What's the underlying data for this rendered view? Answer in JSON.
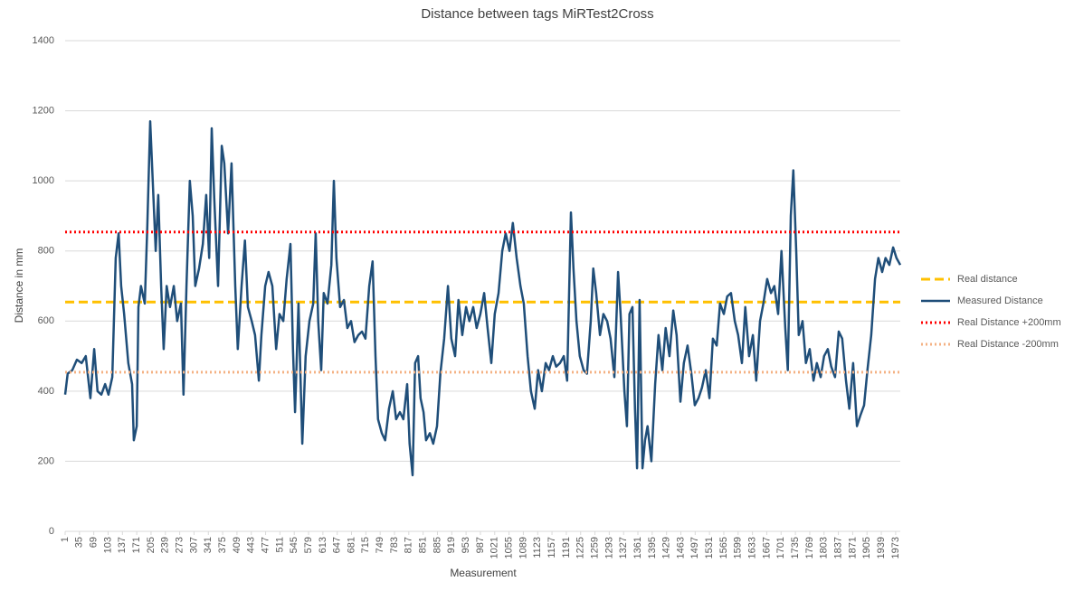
{
  "chart_data": {
    "type": "line",
    "title": "Distance between tags MiRTest2Cross",
    "x_label": "Measurement",
    "y_label": "Distance in mm",
    "xlim": [
      1,
      1984
    ],
    "xticks": [
      1,
      35,
      69,
      103,
      137,
      171,
      205,
      239,
      273,
      307,
      341,
      375,
      409,
      443,
      477,
      511,
      545,
      579,
      613,
      647,
      681,
      715,
      749,
      783,
      817,
      851,
      885,
      919,
      953,
      987,
      1021,
      1055,
      1089,
      1123,
      1157,
      1191,
      1225,
      1259,
      1293,
      1327,
      1361,
      1395,
      1429,
      1463,
      1497,
      1531,
      1565,
      1599,
      1633,
      1667,
      1701,
      1735,
      1769,
      1803,
      1837,
      1871,
      1905,
      1939,
      1973
    ],
    "ylim": [
      0,
      1400
    ],
    "yticks": [
      0,
      200,
      400,
      600,
      800,
      1000,
      1200,
      1400
    ],
    "grid": true,
    "legend": "right",
    "series": [
      {
        "name": "Real distance",
        "color": "#ffc000",
        "dash": "dashed",
        "x": [
          1,
          1984
        ],
        "values": [
          654,
          654
        ]
      },
      {
        "name": "Measured Distance",
        "color": "#1f4e79",
        "dash": "solid",
        "x": [
          1,
          7,
          18,
          29,
          40,
          50,
          61,
          70,
          78,
          87,
          96,
          104,
          113,
          121,
          128,
          134,
          141,
          151,
          160,
          164,
          171,
          175,
          181,
          190,
          196,
          203,
          209,
          216,
          222,
          229,
          235,
          242,
          250,
          259,
          267,
          276,
          282,
          289,
          297,
          304,
          310,
          319,
          328,
          336,
          343,
          349,
          355,
          364,
          373,
          379,
          388,
          396,
          405,
          411,
          420,
          428,
          435,
          444,
          452,
          461,
          467,
          476,
          484,
          493,
          502,
          510,
          519,
          527,
          536,
          542,
          547,
          555,
          564,
          572,
          581,
          590,
          596,
          602,
          609,
          615,
          624,
          633,
          639,
          645,
          654,
          663,
          671,
          680,
          688,
          697,
          706,
          714,
          723,
          731,
          738,
          744,
          753,
          761,
          770,
          779,
          787,
          796,
          804,
          813,
          819,
          826,
          832,
          839,
          845,
          852,
          858,
          867,
          875,
          884,
          892,
          901,
          910,
          918,
          927,
          935,
          944,
          953,
          961,
          970,
          978,
          987,
          996,
          1004,
          1013,
          1021,
          1030,
          1039,
          1047,
          1056,
          1064,
          1073,
          1082,
          1090,
          1099,
          1107,
          1116,
          1124,
          1133,
          1142,
          1150,
          1159,
          1167,
          1176,
          1185,
          1193,
          1202,
          1208,
          1215,
          1223,
          1232,
          1240,
          1249,
          1255,
          1262,
          1271,
          1279,
          1288,
          1296,
          1305,
          1314,
          1320,
          1329,
          1335,
          1341,
          1348,
          1354,
          1359,
          1365,
          1372,
          1378,
          1384,
          1393,
          1402,
          1410,
          1419,
          1427,
          1436,
          1445,
          1453,
          1462,
          1470,
          1479,
          1488,
          1496,
          1505,
          1513,
          1522,
          1531,
          1539,
          1548,
          1556,
          1565,
          1573,
          1582,
          1591,
          1599,
          1608,
          1616,
          1625,
          1634,
          1642,
          1651,
          1659,
          1668,
          1677,
          1685,
          1694,
          1702,
          1711,
          1717,
          1724,
          1730,
          1737,
          1743,
          1752,
          1760,
          1769,
          1778,
          1786,
          1795,
          1803,
          1812,
          1820,
          1829,
          1838,
          1846,
          1855,
          1863,
          1872,
          1881,
          1889,
          1898,
          1906,
          1915,
          1924,
          1932,
          1941,
          1949,
          1958,
          1967,
          1975,
          1984
        ],
        "values": [
          390,
          450,
          460,
          490,
          480,
          500,
          380,
          520,
          400,
          390,
          420,
          390,
          440,
          780,
          850,
          700,
          620,
          480,
          420,
          260,
          300,
          640,
          700,
          650,
          870,
          1170,
          1000,
          800,
          960,
          700,
          520,
          700,
          640,
          700,
          600,
          650,
          390,
          700,
          1000,
          900,
          700,
          750,
          820,
          960,
          780,
          1150,
          950,
          700,
          1100,
          1050,
          850,
          1050,
          700,
          520,
          700,
          830,
          640,
          600,
          560,
          430,
          560,
          700,
          740,
          700,
          520,
          620,
          600,
          720,
          820,
          520,
          340,
          650,
          250,
          500,
          600,
          650,
          850,
          600,
          460,
          680,
          650,
          760,
          1000,
          780,
          640,
          660,
          580,
          600,
          540,
          560,
          570,
          550,
          700,
          770,
          500,
          320,
          280,
          260,
          350,
          400,
          320,
          340,
          320,
          420,
          250,
          160,
          480,
          500,
          380,
          340,
          260,
          280,
          250,
          300,
          450,
          550,
          700,
          550,
          500,
          660,
          560,
          640,
          600,
          640,
          580,
          620,
          680,
          580,
          480,
          620,
          680,
          800,
          850,
          800,
          880,
          780,
          700,
          650,
          500,
          400,
          350,
          460,
          400,
          480,
          460,
          500,
          470,
          480,
          500,
          430,
          910,
          750,
          600,
          500,
          460,
          450,
          600,
          750,
          680,
          560,
          620,
          600,
          550,
          440,
          740,
          620,
          400,
          300,
          620,
          640,
          350,
          180,
          660,
          180,
          260,
          300,
          200,
          420,
          560,
          460,
          580,
          500,
          630,
          560,
          370,
          480,
          530,
          450,
          360,
          380,
          410,
          460,
          380,
          550,
          530,
          650,
          620,
          670,
          680,
          600,
          560,
          480,
          640,
          500,
          560,
          430,
          600,
          650,
          720,
          680,
          700,
          620,
          800,
          580,
          460,
          900,
          1030,
          800,
          560,
          600,
          480,
          520,
          430,
          480,
          440,
          500,
          520,
          470,
          440,
          570,
          550,
          430,
          350,
          480,
          300,
          330,
          360,
          460,
          560,
          720,
          780,
          740,
          780,
          760,
          810,
          780,
          760
        ]
      },
      {
        "name": "Real Distance +200mm",
        "color": "#ff0000",
        "dash": "dotted",
        "x": [
          1,
          1984
        ],
        "values": [
          854,
          854
        ]
      },
      {
        "name": "Real Distance -200mm",
        "color": "#f4b183",
        "dash": "dotted",
        "x": [
          1,
          1984
        ],
        "values": [
          454,
          454
        ]
      }
    ]
  }
}
